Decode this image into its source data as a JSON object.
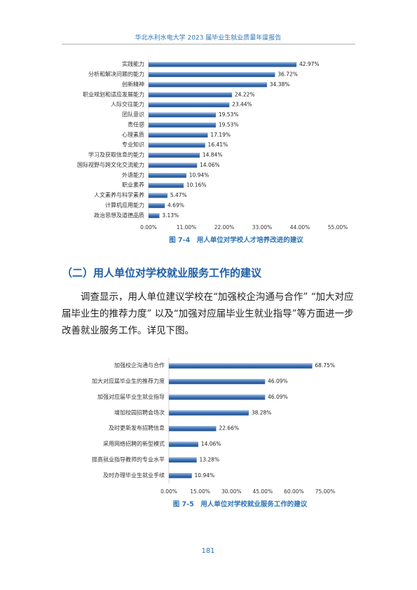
{
  "header": "华北水利水电大学 2023 届毕业生就业质量年度报告",
  "chart_data": [
    {
      "type": "hbar",
      "title": "图 7-4　用人单位对学校人才培养改进的建议",
      "color": "#3f74b8",
      "grid": false,
      "categories": [
        "实践能力",
        "分析和解决问题的能力",
        "创新精神",
        "职业规划和适应发展能力",
        "人际交往能力",
        "团队意识",
        "责任感",
        "心理素质",
        "专业知识",
        "学习及获取信息的能力",
        "国际视野与跨文化交流能力",
        "外语能力",
        "职业素养",
        "人文素养与科学素养",
        "计算机应用能力",
        "政治思想及道德品质"
      ],
      "values": [
        42.97,
        36.72,
        34.38,
        24.22,
        23.44,
        19.53,
        19.53,
        17.19,
        16.41,
        14.84,
        14.06,
        10.94,
        10.16,
        5.47,
        4.69,
        3.13
      ],
      "value_labels": [
        "42.97%",
        "36.72%",
        "34.38%",
        "24.22%",
        "23.44%",
        "19.53%",
        "19.53%",
        "17.19%",
        "16.41%",
        "14.84%",
        "14.06%",
        "10.94%",
        "10.16%",
        "5.47%",
        "4.69%",
        "3.13%"
      ],
      "xlim": [
        0,
        55
      ],
      "xticks": [
        {
          "value": 0,
          "label": "0.00%"
        },
        {
          "value": 11,
          "label": "11.00%"
        },
        {
          "value": 22,
          "label": "22.00%"
        },
        {
          "value": 33,
          "label": "33.00%"
        },
        {
          "value": 44,
          "label": "44.00%"
        },
        {
          "value": 55,
          "label": "55.00%"
        }
      ]
    },
    {
      "type": "hbar",
      "title": "图 7-5　用人单位对学校就业服务工作的建议",
      "color": "#3f74b8",
      "grid": false,
      "categories": [
        "加强校企沟通与合作",
        "加大对应届毕业生的推荐力度",
        "加强对应届毕业生就业指导",
        "增加校园招聘会场次",
        "及时更新发布招聘信息",
        "采用网络招聘的新型模式",
        "提高就业指导教师的专业水平",
        "及时办理毕业生就业手续"
      ],
      "values": [
        68.75,
        46.09,
        46.09,
        38.28,
        22.66,
        14.06,
        13.28,
        10.94
      ],
      "value_labels": [
        "68.75%",
        "46.09%",
        "46.09%",
        "38.28%",
        "22.66%",
        "14.06%",
        "13.28%",
        "10.94%"
      ],
      "xlim": [
        0,
        75
      ],
      "xticks": [
        {
          "value": 0,
          "label": "0.00%"
        },
        {
          "value": 15,
          "label": "15.00%"
        },
        {
          "value": 30,
          "label": "30.00%"
        },
        {
          "value": 45,
          "label": "45.00%"
        },
        {
          "value": 60,
          "label": "60.00%"
        },
        {
          "value": 75,
          "label": "75.00%"
        }
      ]
    }
  ],
  "section_heading": "（二）用人单位对学校就业服务工作的建议",
  "paragraph": "调查显示，用人单位建议学校在“加强校企沟通与合作” “加大对应届毕业生的推荐力度” 以及“加强对应届毕业生就业指导”等方面进一步改善就业服务工作。详见下图。",
  "page_number": "181"
}
